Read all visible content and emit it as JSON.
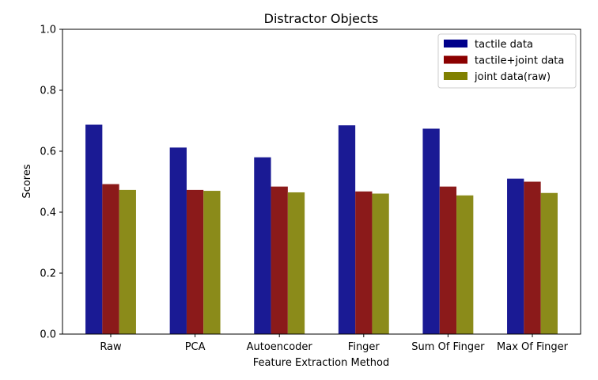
{
  "chart_data": {
    "type": "bar",
    "title": "Distractor Objects",
    "xlabel": "Feature Extraction Method",
    "ylabel": "Scores",
    "ylim": [
      0,
      1.0
    ],
    "yticks": [
      "0.0",
      "0.2",
      "0.4",
      "0.6",
      "0.8",
      "1.0"
    ],
    "categories": [
      "Raw",
      "PCA",
      "Autoencoder",
      "Finger",
      "Sum Of Finger",
      "Max Of Finger"
    ],
    "series": [
      {
        "name": "tactile data",
        "color": "#1a1a94",
        "legend_color": "#00008b",
        "values": [
          0.687,
          0.612,
          0.58,
          0.685,
          0.674,
          0.51
        ]
      },
      {
        "name": "tactile+joint data",
        "color": "#8b1a1a",
        "legend_color": "#8b0000",
        "values": [
          0.492,
          0.473,
          0.484,
          0.468,
          0.484,
          0.5
        ]
      },
      {
        "name": "joint data(raw)",
        "color": "#8b8b1a",
        "legend_color": "#808000",
        "values": [
          0.473,
          0.47,
          0.465,
          0.461,
          0.455,
          0.463
        ]
      }
    ],
    "grid": false,
    "legend_position": "top-right"
  }
}
